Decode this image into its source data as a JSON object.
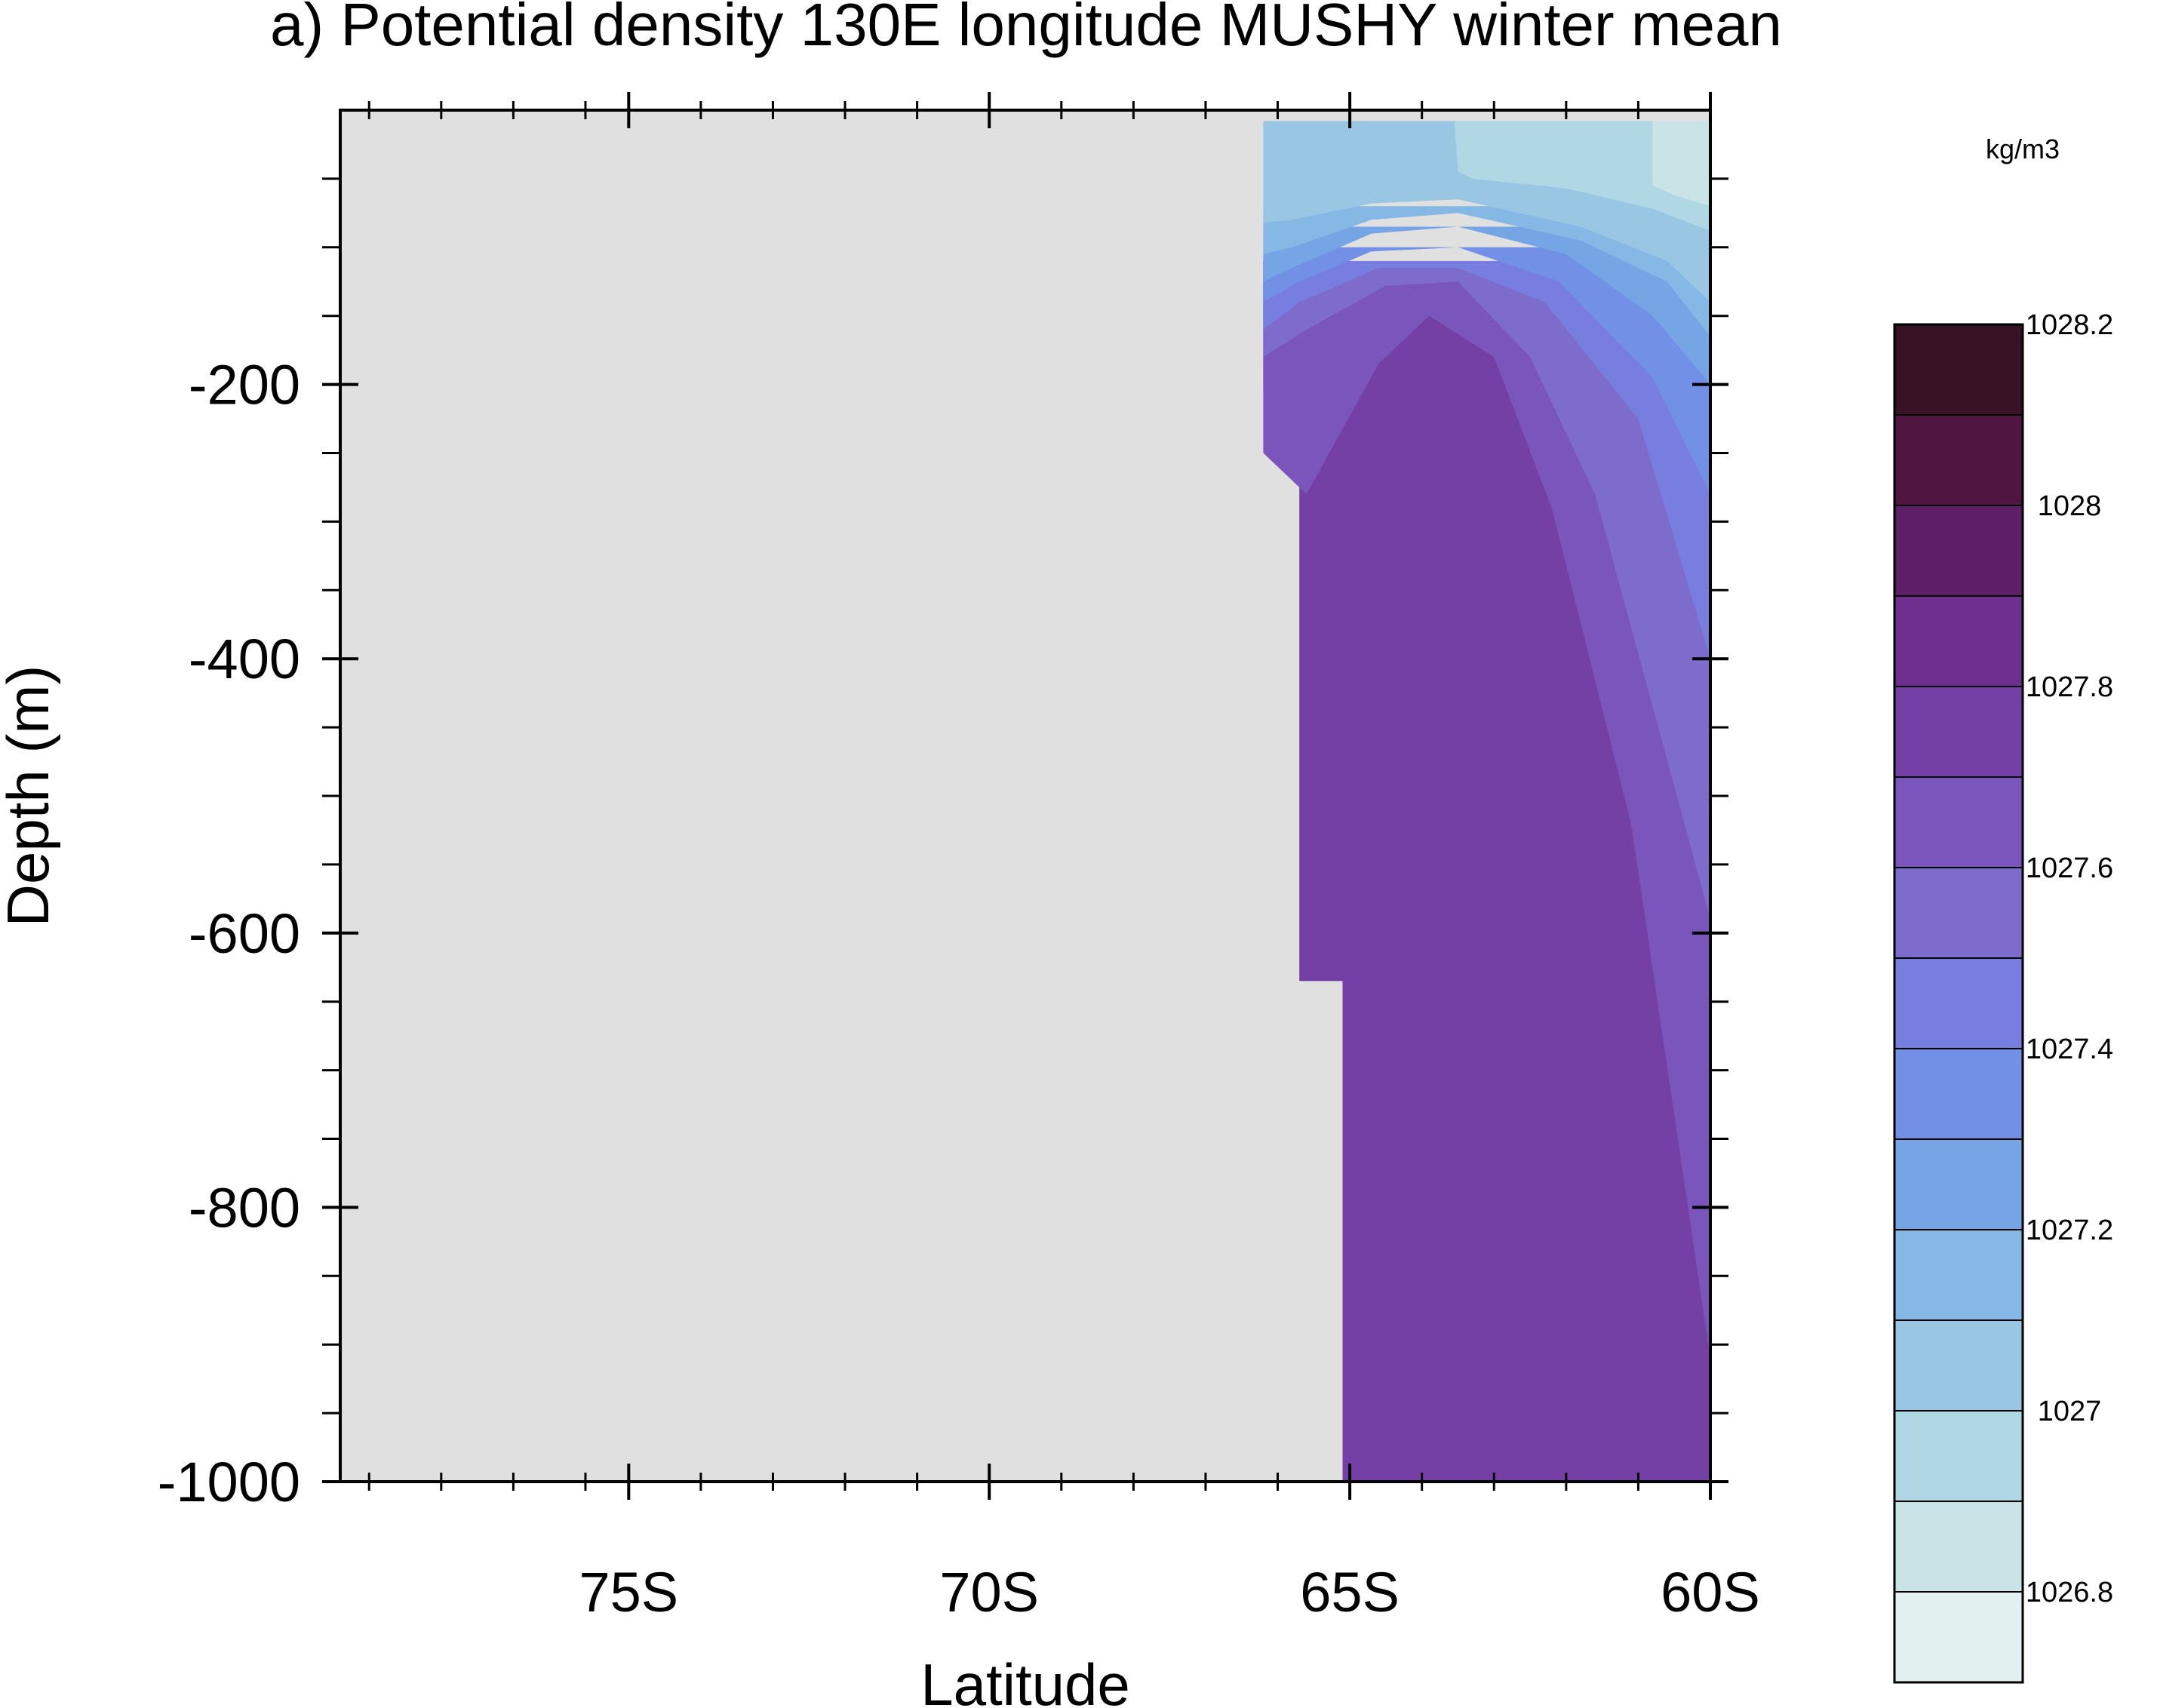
{
  "chart_data": {
    "type": "heatmap",
    "title": "a) Potential density 130E longitude MUSHY winter mean",
    "xlabel": "Latitude",
    "ylabel": "Depth (m)",
    "units": "kg/m3",
    "xlim": [
      -79,
      -60
    ],
    "ylim": [
      -1000,
      0
    ],
    "x_ticks": [
      {
        "value": -75,
        "label": "75S"
      },
      {
        "value": -70,
        "label": "70S"
      },
      {
        "value": -65,
        "label": "65S"
      },
      {
        "value": -60,
        "label": "60S"
      }
    ],
    "x_minor_ticks": [
      -78.6,
      -77.6,
      -76.6,
      -75.6,
      -74.0,
      -73.0,
      -72.0,
      -71.0,
      -69.0,
      -68.0,
      -67.0,
      -66.0,
      -64.0,
      -63.0,
      -62.0,
      -61.0
    ],
    "y_ticks": [
      {
        "value": -200,
        "label": "-200"
      },
      {
        "value": -400,
        "label": "-400"
      },
      {
        "value": -600,
        "label": "-600"
      },
      {
        "value": -800,
        "label": "-800"
      },
      {
        "value": -1000,
        "label": "-1000"
      }
    ],
    "y_minor_ticks": [
      -50,
      -100,
      -150,
      -250,
      -300,
      -350,
      -450,
      -500,
      -550,
      -650,
      -700,
      -750,
      -850,
      -900,
      -950
    ],
    "land_color": "#e0e0e0",
    "colorbar": {
      "levels": [
        1026.8,
        1026.9,
        1027.0,
        1027.1,
        1027.2,
        1027.3,
        1027.4,
        1027.5,
        1027.6,
        1027.7,
        1027.8,
        1027.9,
        1028.0,
        1028.1,
        1028.2
      ],
      "labels": [
        {
          "value": 1026.8,
          "label": "1026.8"
        },
        {
          "value": 1027.0,
          "label": "1027"
        },
        {
          "value": 1027.2,
          "label": "1027.2"
        },
        {
          "value": 1027.4,
          "label": "1027.4"
        },
        {
          "value": 1027.6,
          "label": "1027.6"
        },
        {
          "value": 1027.8,
          "label": "1027.8"
        },
        {
          "value": 1028.0,
          "label": "1028"
        },
        {
          "value": 1028.2,
          "label": "1028.2"
        }
      ],
      "colors": [
        "#e2f0f0",
        "#cae3e6",
        "#b0d8e4",
        "#99c6e3",
        "#86b8e6",
        "#76a5e6",
        "#7190e6",
        "#777ee0",
        "#7e6ccc",
        "#7a55bc",
        "#7440a6",
        "#6e2f8e",
        "#5e1f66",
        "#4e1640",
        "#3a1226"
      ]
    },
    "bands": [
      {
        "level_index": 10,
        "polygon": [
          [
            -65.1,
            -1000
          ],
          [
            -60,
            -1000
          ],
          [
            -60,
            -110
          ],
          [
            -66.2,
            -110
          ],
          [
            -66.2,
            -205
          ],
          [
            -65.7,
            -205
          ],
          [
            -65.7,
            -635
          ],
          [
            -65.1,
            -635
          ]
        ]
      },
      {
        "level_index": 9,
        "polygon": [
          [
            -60,
            -910
          ],
          [
            -61.1,
            -520
          ],
          [
            -62.2,
            -290
          ],
          [
            -63.0,
            -180
          ],
          [
            -63.9,
            -150
          ],
          [
            -64.6,
            -185
          ],
          [
            -65.6,
            -280
          ],
          [
            -66.2,
            -250
          ],
          [
            -66.2,
            -110
          ],
          [
            -60,
            -110
          ]
        ]
      },
      {
        "level_index": 8,
        "polygon": [
          [
            -60,
            -590
          ],
          [
            -61.6,
            -280
          ],
          [
            -62.5,
            -180
          ],
          [
            -63.5,
            -125
          ],
          [
            -64.5,
            -128
          ],
          [
            -65.6,
            -160
          ],
          [
            -66.2,
            -180
          ],
          [
            -66.2,
            -110
          ],
          [
            -60,
            -110
          ]
        ]
      },
      {
        "level_index": 7,
        "polygon": [
          [
            -60,
            -400
          ],
          [
            -61.0,
            -225
          ],
          [
            -62.3,
            -140
          ],
          [
            -63.5,
            -115
          ],
          [
            -64.6,
            -115
          ],
          [
            -65.7,
            -140
          ],
          [
            -66.2,
            -160
          ],
          [
            -66.2,
            -110
          ],
          [
            -60,
            -110
          ]
        ]
      },
      {
        "level_index": 6,
        "polygon": [
          [
            -60,
            -280
          ],
          [
            -60.8,
            -195
          ],
          [
            -62.1,
            -125
          ],
          [
            -63.5,
            -100
          ],
          [
            -64.7,
            -103
          ],
          [
            -65.7,
            -125
          ],
          [
            -66.2,
            -140
          ],
          [
            -66.2,
            -100
          ],
          [
            -60,
            -100
          ]
        ]
      },
      {
        "level_index": 5,
        "polygon": [
          [
            -60,
            -200
          ],
          [
            -60.8,
            -150
          ],
          [
            -62.0,
            -105
          ],
          [
            -63.5,
            -85
          ],
          [
            -64.7,
            -90
          ],
          [
            -65.8,
            -115
          ],
          [
            -66.2,
            -125
          ],
          [
            -66.2,
            -85
          ],
          [
            -60,
            -85
          ]
        ]
      },
      {
        "level_index": 4,
        "polygon": [
          [
            -60,
            -165
          ],
          [
            -60.6,
            -125
          ],
          [
            -61.8,
            -95
          ],
          [
            -63.5,
            -75
          ],
          [
            -64.7,
            -80
          ],
          [
            -65.8,
            -100
          ],
          [
            -66.2,
            -105
          ],
          [
            -66.2,
            -70
          ],
          [
            -60,
            -70
          ]
        ]
      },
      {
        "level_index": 3,
        "polygon": [
          [
            -60,
            -8
          ],
          [
            -60,
            -140
          ],
          [
            -60.6,
            -110
          ],
          [
            -61.8,
            -85
          ],
          [
            -63.5,
            -65
          ],
          [
            -64.7,
            -68
          ],
          [
            -65.8,
            -80
          ],
          [
            -66.2,
            -82
          ],
          [
            -66.2,
            -8
          ]
        ]
      },
      {
        "level_index": 2,
        "polygon": [
          [
            -63.55,
            -8
          ],
          [
            -63.5,
            -45
          ],
          [
            -63.3,
            -50
          ],
          [
            -62.0,
            -57
          ],
          [
            -60.8,
            -72
          ],
          [
            -60,
            -88
          ],
          [
            -60,
            -8
          ]
        ]
      },
      {
        "level_index": 1,
        "polygon": [
          [
            -60.8,
            -8
          ],
          [
            -60.8,
            -55
          ],
          [
            -60.5,
            -62
          ],
          [
            -60,
            -70
          ],
          [
            -60,
            -8
          ]
        ]
      }
    ]
  }
}
